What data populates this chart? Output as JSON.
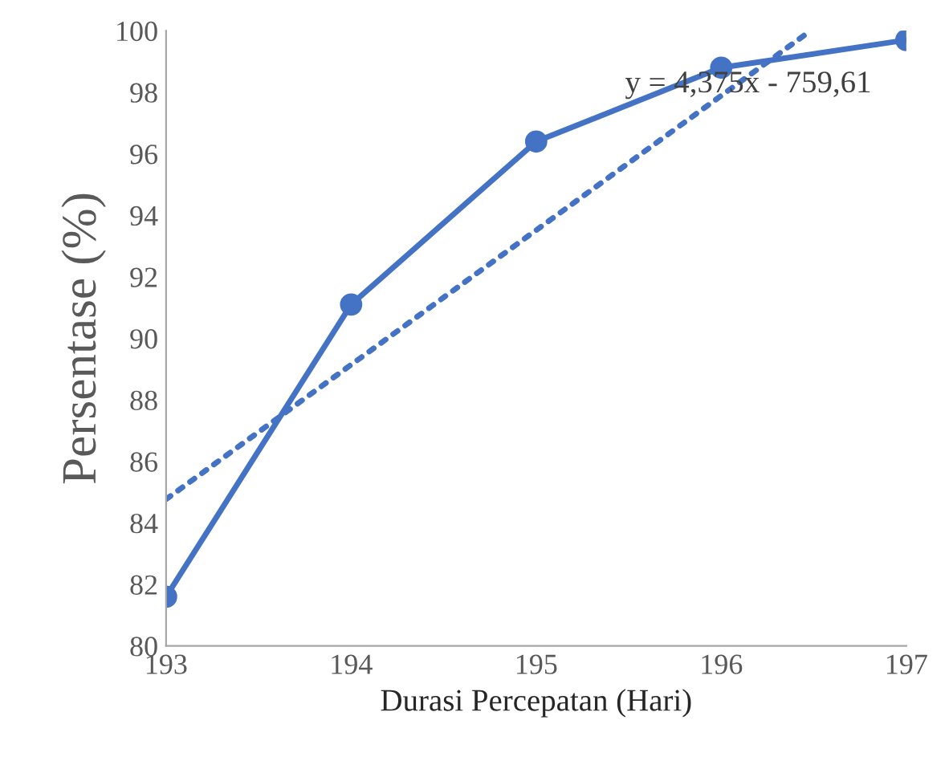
{
  "chart_data": {
    "type": "line",
    "xlabel": "Durasi Percepatan (Hari)",
    "ylabel": "Persentase (%)",
    "x": [
      193,
      194,
      195,
      196,
      197
    ],
    "series": [
      {
        "color": "#4472c4",
        "values": [
          81.6,
          91.1,
          96.4,
          98.8,
          99.7
        ],
        "marker": "circle",
        "line_style": "solid"
      },
      {
        "color": "#4472c4",
        "x": [
          193,
          196.48
        ],
        "values": [
          84.77,
          99.99
        ],
        "marker": "none",
        "line_style": "dotted"
      }
    ],
    "xlim": [
      193,
      197
    ],
    "xticks": [
      193,
      194,
      195,
      196,
      197
    ],
    "ylim": [
      80,
      100
    ],
    "yticks": [
      80,
      82,
      84,
      86,
      88,
      90,
      92,
      94,
      96,
      98,
      100
    ],
    "grid": false,
    "legend": false,
    "annotations": [
      "y = 4,375x - 759,61"
    ]
  }
}
